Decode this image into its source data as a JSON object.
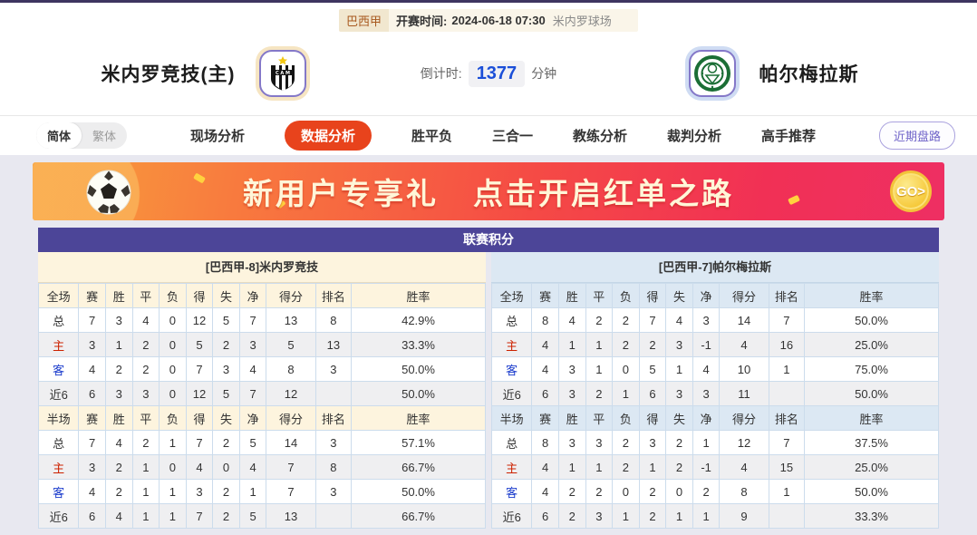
{
  "top": {
    "league": "巴西甲",
    "kickoff_label": "开赛时间:",
    "kickoff_time": "2024-06-18 07:30",
    "venue": "米内罗球场"
  },
  "teams": {
    "home": {
      "name": "米内罗竞技(主)",
      "logo": "atletico-mineiro-crest"
    },
    "away": {
      "name": "帕尔梅拉斯",
      "logo": "palmeiras-crest"
    }
  },
  "countdown": {
    "label": "倒计时:",
    "value": "1377",
    "unit": "分钟"
  },
  "lang_toggle": {
    "simplified": "简体",
    "traditional": "繁体",
    "selected": "简体"
  },
  "nav": {
    "items": [
      "现场分析",
      "数据分析",
      "胜平负",
      "三合一",
      "教练分析",
      "裁判分析",
      "高手推荐"
    ],
    "active_index": 1,
    "recent_button": "近期盘路"
  },
  "banner": {
    "text1": "新用户专享礼",
    "text2": "点击开启红单之路",
    "go_label": "GO>",
    "icons": [
      "soccer-ball-icon",
      "go-coin-icon"
    ]
  },
  "colors": {
    "accent_red": "#e8431c",
    "title_purple": "#4c4598",
    "countdown_blue": "#1b4fd8",
    "home_panel_cream": "#fdf4de",
    "away_panel_blue": "#dce8f3",
    "home_label_red": "#cc2200",
    "away_label_blue": "#1a3bcc"
  },
  "league_table": {
    "title": "联赛积分",
    "sides": [
      {
        "header": "[巴西甲-8]米内罗竞技",
        "sections": [
          {
            "columns": [
              "全场",
              "赛",
              "胜",
              "平",
              "负",
              "得",
              "失",
              "净",
              "得分",
              "排名",
              "胜率"
            ],
            "rows": [
              {
                "label": "总",
                "color": "",
                "values": [
                  "7",
                  "3",
                  "4",
                  "0",
                  "12",
                  "5",
                  "7",
                  "13",
                  "8",
                  "42.9%"
                ]
              },
              {
                "label": "主",
                "color": "red",
                "values": [
                  "3",
                  "1",
                  "2",
                  "0",
                  "5",
                  "2",
                  "3",
                  "5",
                  "13",
                  "33.3%"
                ]
              },
              {
                "label": "客",
                "color": "blue",
                "values": [
                  "4",
                  "2",
                  "2",
                  "0",
                  "7",
                  "3",
                  "4",
                  "8",
                  "3",
                  "50.0%"
                ]
              },
              {
                "label": "近6",
                "color": "",
                "values": [
                  "6",
                  "3",
                  "3",
                  "0",
                  "12",
                  "5",
                  "7",
                  "12",
                  "",
                  "50.0%"
                ]
              }
            ]
          },
          {
            "columns": [
              "半场",
              "赛",
              "胜",
              "平",
              "负",
              "得",
              "失",
              "净",
              "得分",
              "排名",
              "胜率"
            ],
            "rows": [
              {
                "label": "总",
                "color": "",
                "values": [
                  "7",
                  "4",
                  "2",
                  "1",
                  "7",
                  "2",
                  "5",
                  "14",
                  "3",
                  "57.1%"
                ]
              },
              {
                "label": "主",
                "color": "red",
                "values": [
                  "3",
                  "2",
                  "1",
                  "0",
                  "4",
                  "0",
                  "4",
                  "7",
                  "8",
                  "66.7%"
                ]
              },
              {
                "label": "客",
                "color": "blue",
                "values": [
                  "4",
                  "2",
                  "1",
                  "1",
                  "3",
                  "2",
                  "1",
                  "7",
                  "3",
                  "50.0%"
                ]
              },
              {
                "label": "近6",
                "color": "",
                "values": [
                  "6",
                  "4",
                  "1",
                  "1",
                  "7",
                  "2",
                  "5",
                  "13",
                  "",
                  "66.7%"
                ]
              }
            ]
          }
        ]
      },
      {
        "header": "[巴西甲-7]帕尔梅拉斯",
        "sections": [
          {
            "columns": [
              "全场",
              "赛",
              "胜",
              "平",
              "负",
              "得",
              "失",
              "净",
              "得分",
              "排名",
              "胜率"
            ],
            "rows": [
              {
                "label": "总",
                "color": "",
                "values": [
                  "8",
                  "4",
                  "2",
                  "2",
                  "7",
                  "4",
                  "3",
                  "14",
                  "7",
                  "50.0%"
                ]
              },
              {
                "label": "主",
                "color": "red",
                "values": [
                  "4",
                  "1",
                  "1",
                  "2",
                  "2",
                  "3",
                  "-1",
                  "4",
                  "16",
                  "25.0%"
                ]
              },
              {
                "label": "客",
                "color": "blue",
                "values": [
                  "4",
                  "3",
                  "1",
                  "0",
                  "5",
                  "1",
                  "4",
                  "10",
                  "1",
                  "75.0%"
                ]
              },
              {
                "label": "近6",
                "color": "",
                "values": [
                  "6",
                  "3",
                  "2",
                  "1",
                  "6",
                  "3",
                  "3",
                  "11",
                  "",
                  "50.0%"
                ]
              }
            ]
          },
          {
            "columns": [
              "半场",
              "赛",
              "胜",
              "平",
              "负",
              "得",
              "失",
              "净",
              "得分",
              "排名",
              "胜率"
            ],
            "rows": [
              {
                "label": "总",
                "color": "",
                "values": [
                  "8",
                  "3",
                  "3",
                  "2",
                  "3",
                  "2",
                  "1",
                  "12",
                  "7",
                  "37.5%"
                ]
              },
              {
                "label": "主",
                "color": "red",
                "values": [
                  "4",
                  "1",
                  "1",
                  "2",
                  "1",
                  "2",
                  "-1",
                  "4",
                  "15",
                  "25.0%"
                ]
              },
              {
                "label": "客",
                "color": "blue",
                "values": [
                  "4",
                  "2",
                  "2",
                  "0",
                  "2",
                  "0",
                  "2",
                  "8",
                  "1",
                  "50.0%"
                ]
              },
              {
                "label": "近6",
                "color": "",
                "values": [
                  "6",
                  "2",
                  "3",
                  "1",
                  "2",
                  "1",
                  "1",
                  "9",
                  "",
                  "33.3%"
                ]
              }
            ]
          }
        ]
      }
    ]
  }
}
